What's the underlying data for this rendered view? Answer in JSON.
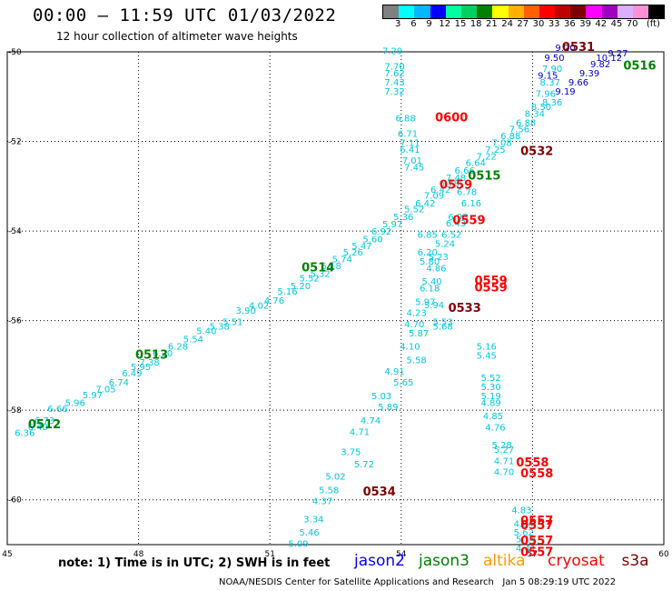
{
  "header": {
    "title": "00:00 – 11:59 UTC 01/03/2022",
    "subtitle": "12 hour collection of altimeter wave heights"
  },
  "colorbar": {
    "colors": [
      "#808080",
      "#00ffff",
      "#00b8ff",
      "#0000ff",
      "#00ffa0",
      "#00d060",
      "#008000",
      "#ffff00",
      "#ffb000",
      "#ff6000",
      "#ff0000",
      "#c00000",
      "#800000",
      "#ff00ff",
      "#a000c0",
      "#d8b0ff",
      "#ff90d8",
      "#000000"
    ],
    "ticks": [
      "3",
      "6",
      "9",
      "12",
      "15",
      "18",
      "21",
      "24",
      "27",
      "30",
      "33",
      "36",
      "39",
      "42",
      "45",
      "70",
      "(ft)"
    ]
  },
  "map": {
    "lon_ticks": [
      "45",
      "48",
      "51",
      "54",
      "57",
      "60"
    ],
    "lat_ticks": [
      "-50",
      "-52",
      "-54",
      "-56",
      "-58",
      "-60"
    ],
    "grid": "dotted"
  },
  "track_cyan_nw": [
    {
      "lon": 45.4,
      "lat": -58.57,
      "v": "6.36"
    },
    {
      "lon": 45.7,
      "lat": -58.44,
      "v": "6.40"
    },
    {
      "lon": 45.85,
      "lat": -58.3,
      "v": "6.73"
    },
    {
      "lon": 46.15,
      "lat": -58.04,
      "v": "6.66"
    },
    {
      "lon": 46.55,
      "lat": -57.9,
      "v": "5.96"
    },
    {
      "lon": 46.95,
      "lat": -57.73,
      "v": "5.97"
    },
    {
      "lon": 47.25,
      "lat": -57.6,
      "v": "7.05"
    },
    {
      "lon": 47.55,
      "lat": -57.45,
      "v": "6.74"
    },
    {
      "lon": 47.85,
      "lat": -57.25,
      "v": "6.49"
    },
    {
      "lon": 48.05,
      "lat": -57.1,
      "v": "5.95"
    },
    {
      "lon": 48.25,
      "lat": -57.0,
      "v": "7.38"
    },
    {
      "lon": 48.55,
      "lat": -56.8,
      "v": "6.20"
    },
    {
      "lon": 48.9,
      "lat": -56.65,
      "v": "6.28"
    },
    {
      "lon": 49.25,
      "lat": -56.48,
      "v": "5.54"
    },
    {
      "lon": 49.55,
      "lat": -56.3,
      "v": "5.40"
    },
    {
      "lon": 49.85,
      "lat": -56.2,
      "v": "5.38"
    },
    {
      "lon": 50.15,
      "lat": -56.1,
      "v": "5.51"
    },
    {
      "lon": 50.45,
      "lat": -55.85,
      "v": "3.90"
    },
    {
      "lon": 50.75,
      "lat": -55.73,
      "v": "4.02"
    },
    {
      "lon": 51.1,
      "lat": -55.62,
      "v": "4.76"
    },
    {
      "lon": 51.4,
      "lat": -55.42,
      "v": "5.16"
    },
    {
      "lon": 51.7,
      "lat": -55.3,
      "v": "5.20"
    },
    {
      "lon": 51.9,
      "lat": -55.12,
      "v": "5.52"
    },
    {
      "lon": 52.15,
      "lat": -55.02,
      "v": "5.32"
    },
    {
      "lon": 52.4,
      "lat": -54.85,
      "v": "5.18"
    },
    {
      "lon": 52.65,
      "lat": -54.7,
      "v": "5.74"
    },
    {
      "lon": 52.9,
      "lat": -54.55,
      "v": "5.26"
    },
    {
      "lon": 53.1,
      "lat": -54.4,
      "v": "5.47"
    },
    {
      "lon": 53.35,
      "lat": -54.25,
      "v": "5.60"
    },
    {
      "lon": 53.55,
      "lat": -54.08,
      "v": "6.92"
    },
    {
      "lon": 53.8,
      "lat": -53.92,
      "v": "5.97"
    },
    {
      "lon": 54.05,
      "lat": -53.75,
      "v": "5.36"
    },
    {
      "lon": 54.3,
      "lat": -53.58,
      "v": "5.52"
    },
    {
      "lon": 54.55,
      "lat": -53.45,
      "v": "6.42"
    },
    {
      "lon": 54.75,
      "lat": -53.28,
      "v": "7.09"
    },
    {
      "lon": 54.9,
      "lat": -53.15,
      "v": "6.42"
    },
    {
      "lon": 55.1,
      "lat": -53.0,
      "v": "6.78"
    },
    {
      "lon": 55.25,
      "lat": -52.88,
      "v": "7.48"
    },
    {
      "lon": 55.45,
      "lat": -52.72,
      "v": "6.66"
    }
  ],
  "track_cyan_ne": [
    {
      "lon": 55.7,
      "lat": -52.55,
      "v": "6.64"
    },
    {
      "lon": 55.95,
      "lat": -52.4,
      "v": "7.22"
    },
    {
      "lon": 56.15,
      "lat": -52.25,
      "v": "7.25"
    },
    {
      "lon": 56.3,
      "lat": -52.1,
      "v": "7.08"
    },
    {
      "lon": 56.5,
      "lat": -51.95,
      "v": "6.88"
    },
    {
      "lon": 56.7,
      "lat": -51.8,
      "v": "7.56"
    },
    {
      "lon": 56.85,
      "lat": -51.65,
      "v": "6.88"
    },
    {
      "lon": 57.05,
      "lat": -51.45,
      "v": "8.34"
    },
    {
      "lon": 57.2,
      "lat": -51.3,
      "v": "8.50"
    },
    {
      "lon": 57.45,
      "lat": -51.2,
      "v": "8.36"
    },
    {
      "lon": 57.3,
      "lat": -51.0,
      "v": "7.96"
    },
    {
      "lon": 57.4,
      "lat": -50.75,
      "v": "8.37"
    },
    {
      "lon": 57.45,
      "lat": -50.45,
      "v": "7.90"
    }
  ],
  "track_blue_ne": [
    {
      "lon": 57.35,
      "lat": -50.6,
      "v": "9.15"
    },
    {
      "lon": 57.75,
      "lat": -50.95,
      "v": "9.19"
    },
    {
      "lon": 58.05,
      "lat": -50.75,
      "v": "9.66"
    },
    {
      "lon": 58.3,
      "lat": -50.55,
      "v": "9.39"
    },
    {
      "lon": 58.55,
      "lat": -50.35,
      "v": "9.82"
    },
    {
      "lon": 58.75,
      "lat": -50.2,
      "v": "10.12"
    },
    {
      "lon": 58.95,
      "lat": -50.1,
      "v": "9.27"
    },
    {
      "lon": 57.5,
      "lat": -50.2,
      "v": "9.50"
    },
    {
      "lon": 57.75,
      "lat": -49.98,
      "v": "9.20"
    }
  ],
  "track_cyan_center": [
    {
      "lon": 53.8,
      "lat": -50.05,
      "v": "7.29"
    },
    {
      "lon": 53.85,
      "lat": -50.4,
      "v": "7.70"
    },
    {
      "lon": 53.85,
      "lat": -50.55,
      "v": "7.62"
    },
    {
      "lon": 53.85,
      "lat": -50.75,
      "v": "7.43"
    },
    {
      "lon": 53.85,
      "lat": -50.95,
      "v": "7.32"
    },
    {
      "lon": 54.1,
      "lat": -51.55,
      "v": "6.88"
    },
    {
      "lon": 54.15,
      "lat": -51.9,
      "v": "6.71"
    },
    {
      "lon": 54.2,
      "lat": -52.1,
      "v": "7.11"
    },
    {
      "lon": 54.2,
      "lat": -52.25,
      "v": "6.41"
    },
    {
      "lon": 54.25,
      "lat": -52.5,
      "v": "7.01"
    },
    {
      "lon": 54.3,
      "lat": -52.65,
      "v": "7.45"
    },
    {
      "lon": 55.5,
      "lat": -53.2,
      "v": "6.78"
    },
    {
      "lon": 55.6,
      "lat": -53.45,
      "v": "6.16"
    },
    {
      "lon": 55.3,
      "lat": -53.75,
      "v": "6.93"
    },
    {
      "lon": 55.25,
      "lat": -53.9,
      "v": "6.43"
    },
    {
      "lon": 55.15,
      "lat": -54.15,
      "v": "6.52"
    },
    {
      "lon": 54.6,
      "lat": -54.15,
      "v": "6.85"
    },
    {
      "lon": 55.0,
      "lat": -54.35,
      "v": "5.24"
    },
    {
      "lon": 54.6,
      "lat": -54.55,
      "v": "6.20"
    },
    {
      "lon": 54.85,
      "lat": -54.65,
      "v": "5.23"
    },
    {
      "lon": 54.65,
      "lat": -54.75,
      "v": "5.80"
    },
    {
      "lon": 54.8,
      "lat": -54.9,
      "v": "4.86"
    },
    {
      "lon": 54.7,
      "lat": -55.2,
      "v": "5.40"
    },
    {
      "lon": 54.65,
      "lat": -55.35,
      "v": "6.18"
    },
    {
      "lon": 54.55,
      "lat": -55.65,
      "v": "5.97"
    },
    {
      "lon": 54.75,
      "lat": -55.72,
      "v": "5.94"
    },
    {
      "lon": 54.35,
      "lat": -55.9,
      "v": "4.23"
    },
    {
      "lon": 54.3,
      "lat": -56.15,
      "v": "4.70"
    },
    {
      "lon": 54.95,
      "lat": -56.1,
      "v": "5.53"
    },
    {
      "lon": 54.95,
      "lat": -56.2,
      "v": "5.68"
    },
    {
      "lon": 54.4,
      "lat": -56.35,
      "v": "5.87"
    },
    {
      "lon": 54.2,
      "lat": -56.65,
      "v": "4.10"
    },
    {
      "lon": 54.35,
      "lat": -56.95,
      "v": "5.58"
    },
    {
      "lon": 53.85,
      "lat": -57.2,
      "v": "4.91"
    },
    {
      "lon": 54.05,
      "lat": -57.45,
      "v": "5.65"
    },
    {
      "lon": 53.55,
      "lat": -57.75,
      "v": "5.03"
    },
    {
      "lon": 53.7,
      "lat": -58.0,
      "v": "5.89"
    },
    {
      "lon": 53.3,
      "lat": -58.3,
      "v": "4.74"
    },
    {
      "lon": 53.05,
      "lat": -58.55,
      "v": "4.71"
    },
    {
      "lon": 52.85,
      "lat": -59.0,
      "v": "3.75"
    },
    {
      "lon": 53.15,
      "lat": -59.27,
      "v": "5.72"
    },
    {
      "lon": 52.5,
      "lat": -59.55,
      "v": "5.02"
    },
    {
      "lon": 52.35,
      "lat": -59.85,
      "v": "5.58"
    },
    {
      "lon": 52.2,
      "lat": -60.1,
      "v": "4.37"
    },
    {
      "lon": 52.0,
      "lat": -60.5,
      "v": "3.34"
    },
    {
      "lon": 51.9,
      "lat": -60.8,
      "v": "5.46"
    },
    {
      "lon": 51.65,
      "lat": -61.05,
      "v": "5.09"
    }
  ],
  "track_cyan_south": [
    {
      "lon": 55.95,
      "lat": -56.65,
      "v": "5.16"
    },
    {
      "lon": 55.95,
      "lat": -56.85,
      "v": "5.45"
    },
    {
      "lon": 56.05,
      "lat": -57.35,
      "v": "5.52"
    },
    {
      "lon": 56.05,
      "lat": -57.55,
      "v": "5.30"
    },
    {
      "lon": 56.05,
      "lat": -57.75,
      "v": "5.19"
    },
    {
      "lon": 56.05,
      "lat": -57.9,
      "v": "4.89"
    },
    {
      "lon": 56.1,
      "lat": -58.2,
      "v": "4.85"
    },
    {
      "lon": 56.15,
      "lat": -58.45,
      "v": "4.76"
    },
    {
      "lon": 56.3,
      "lat": -58.85,
      "v": "5.28"
    },
    {
      "lon": 56.35,
      "lat": -58.95,
      "v": "5.27"
    },
    {
      "lon": 56.35,
      "lat": -59.2,
      "v": "4.71"
    },
    {
      "lon": 56.35,
      "lat": -59.45,
      "v": "4.70"
    },
    {
      "lon": 56.75,
      "lat": -60.3,
      "v": "4.83"
    },
    {
      "lon": 56.8,
      "lat": -60.6,
      "v": "4.64"
    },
    {
      "lon": 56.85,
      "lat": -60.95,
      "v": "5.14"
    },
    {
      "lon": 56.85,
      "lat": -61.15,
      "v": "4.41"
    },
    {
      "lon": 56.8,
      "lat": -60.8,
      "v": "5.62"
    }
  ],
  "passes": [
    {
      "lon": 45.85,
      "lat": -58.4,
      "t": "0512",
      "color": "#008000"
    },
    {
      "lon": 48.3,
      "lat": -56.85,
      "t": "0513",
      "color": "#008000"
    },
    {
      "lon": 52.1,
      "lat": -54.9,
      "t": "0514",
      "color": "#008000"
    },
    {
      "lon": 55.9,
      "lat": -52.85,
      "t": "0515",
      "color": "#008000"
    },
    {
      "lon": 59.45,
      "lat": -50.4,
      "t": "0516",
      "color": "#008000"
    },
    {
      "lon": 58.05,
      "lat": -49.98,
      "t": "0531",
      "color": "#800000"
    },
    {
      "lon": 57.1,
      "lat": -52.3,
      "t": "0532",
      "color": "#800000"
    },
    {
      "lon": 55.45,
      "lat": -55.8,
      "t": "0533",
      "color": "#800000"
    },
    {
      "lon": 53.5,
      "lat": -59.9,
      "t": "0534",
      "color": "#800000"
    },
    {
      "lon": 55.15,
      "lat": -51.55,
      "t": "0600",
      "color": "#ff0000"
    },
    {
      "lon": 55.25,
      "lat": -53.05,
      "t": "0559",
      "color": "#ff0000"
    },
    {
      "lon": 55.55,
      "lat": -53.85,
      "t": "0559",
      "color": "#ff0000"
    },
    {
      "lon": 56.05,
      "lat": -55.2,
      "t": "0559",
      "color": "#ff0000"
    },
    {
      "lon": 56.05,
      "lat": -55.35,
      "t": "0559",
      "color": "#ff0000"
    },
    {
      "lon": 57.0,
      "lat": -59.25,
      "t": "0558",
      "color": "#ff0000"
    },
    {
      "lon": 57.1,
      "lat": -59.5,
      "t": "0558",
      "color": "#ff0000"
    },
    {
      "lon": 57.1,
      "lat": -60.55,
      "t": "0557",
      "color": "#ff0000"
    },
    {
      "lon": 57.1,
      "lat": -60.65,
      "t": "0557",
      "color": "#ff0000"
    },
    {
      "lon": 57.1,
      "lat": -61.0,
      "t": "0557",
      "color": "#ff0000"
    },
    {
      "lon": 57.1,
      "lat": -61.25,
      "t": "0557",
      "color": "#ff0000"
    }
  ],
  "footer": {
    "note": "note: 1) Time is in UTC; 2) SWH is in feet",
    "satellites": [
      {
        "name": "jason2",
        "color": "#0000ff"
      },
      {
        "name": "jason3",
        "color": "#008000"
      },
      {
        "name": "altika",
        "color": "#ff9900"
      },
      {
        "name": "cryosat",
        "color": "#ff0000"
      },
      {
        "name": "s3a",
        "color": "#800000"
      }
    ],
    "credit": "NOAA/NESDIS Center for Satellite Applications and Research",
    "timestamp": "Jan  5 08:29:19 UTC 2022"
  }
}
